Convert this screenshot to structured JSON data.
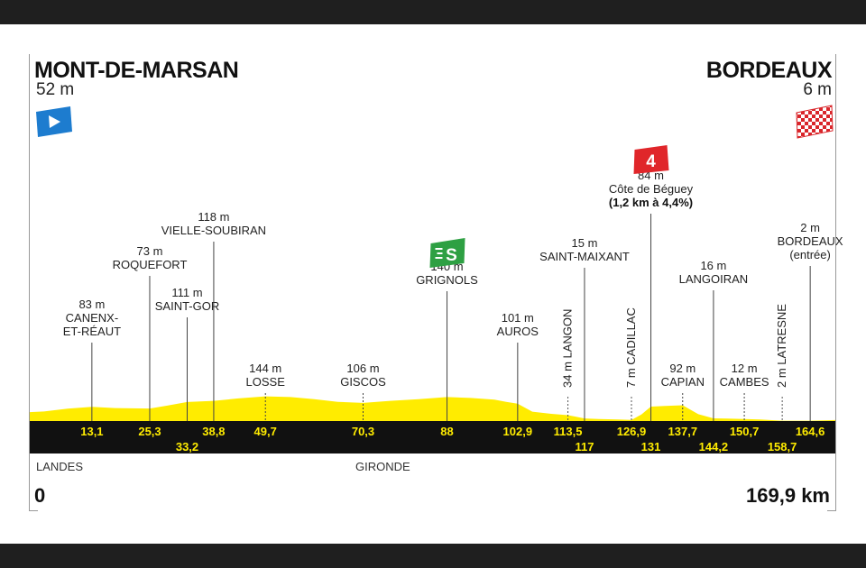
{
  "stage": {
    "start": {
      "name": "MONT-DE-MARSAN",
      "altitude": "52 m"
    },
    "finish": {
      "name": "BORDEAUX",
      "altitude": "6 m"
    },
    "start_km": "0",
    "total_km": "169,9 km",
    "departments": [
      "LANDES",
      "GIRONDE"
    ]
  },
  "chart_data": {
    "type": "area",
    "x_unit": "km",
    "xlim": [
      0,
      169.9
    ],
    "profile": [
      [
        0,
        52
      ],
      [
        3,
        56
      ],
      [
        8,
        72
      ],
      [
        13.1,
        83
      ],
      [
        18,
        76
      ],
      [
        25.3,
        73
      ],
      [
        29,
        90
      ],
      [
        33.2,
        111
      ],
      [
        38.8,
        118
      ],
      [
        44,
        132
      ],
      [
        49.7,
        144
      ],
      [
        55,
        140
      ],
      [
        60,
        128
      ],
      [
        65,
        112
      ],
      [
        70.3,
        106
      ],
      [
        76,
        118
      ],
      [
        82,
        128
      ],
      [
        88,
        140
      ],
      [
        93,
        135
      ],
      [
        98,
        125
      ],
      [
        100.5,
        112
      ],
      [
        102.9,
        101
      ],
      [
        106,
        55
      ],
      [
        110,
        42
      ],
      [
        113.5,
        34
      ],
      [
        117,
        15
      ],
      [
        120,
        12
      ],
      [
        124,
        9
      ],
      [
        126.9,
        7
      ],
      [
        129,
        38
      ],
      [
        131,
        84
      ],
      [
        134,
        88
      ],
      [
        137.7,
        92
      ],
      [
        141,
        40
      ],
      [
        144.2,
        16
      ],
      [
        147,
        14
      ],
      [
        150.7,
        12
      ],
      [
        154,
        9
      ],
      [
        158.7,
        2
      ],
      [
        164.6,
        2
      ],
      [
        169.9,
        6
      ]
    ],
    "km_markers_top": [
      {
        "km": 13.1,
        "label": "13,1"
      },
      {
        "km": 25.3,
        "label": "25,3"
      },
      {
        "km": 38.8,
        "label": "38,8"
      },
      {
        "km": 49.7,
        "label": "49,7"
      },
      {
        "km": 70.3,
        "label": "70,3"
      },
      {
        "km": 88,
        "label": "88"
      },
      {
        "km": 102.9,
        "label": "102,9"
      },
      {
        "km": 113.5,
        "label": "113,5"
      },
      {
        "km": 126.9,
        "label": "126,9"
      },
      {
        "km": 137.7,
        "label": "137,7"
      },
      {
        "km": 150.7,
        "label": "150,7"
      },
      {
        "km": 164.6,
        "label": "164,6"
      }
    ],
    "km_markers_bottom": [
      {
        "km": 33.2,
        "label": "33,2"
      },
      {
        "km": 117,
        "label": "117"
      },
      {
        "km": 131,
        "label": "131"
      },
      {
        "km": 144.2,
        "label": "144,2"
      },
      {
        "km": 158.7,
        "label": "158,7"
      }
    ],
    "waypoints": [
      {
        "km": 13.1,
        "alt": "83 m",
        "name": [
          "CANENX-",
          "ET-RÉAUT"
        ],
        "line": "tall"
      },
      {
        "km": 25.3,
        "alt": "73 m",
        "name": [
          "ROQUEFORT"
        ],
        "line": "tall"
      },
      {
        "km": 33.2,
        "alt": "111 m",
        "name": [
          "SAINT-GOR"
        ],
        "line": "tall"
      },
      {
        "km": 38.8,
        "alt": "118 m",
        "name": [
          "VIELLE-SOUBIRAN"
        ],
        "line": "tall"
      },
      {
        "km": 49.7,
        "alt": "144 m",
        "name": [
          "LOSSE"
        ],
        "line": "short"
      },
      {
        "km": 70.3,
        "alt": "106 m",
        "name": [
          "GISCOS"
        ],
        "line": "short"
      },
      {
        "km": 88,
        "alt": "140 m",
        "name": [
          "GRIGNOLS"
        ],
        "line": "tall",
        "sprint": "S"
      },
      {
        "km": 102.9,
        "alt": "101 m",
        "name": [
          "AUROS"
        ],
        "line": "tall"
      },
      {
        "km": 113.5,
        "vertical": "34 m LANGON"
      },
      {
        "km": 117,
        "alt": "15 m",
        "name": [
          "SAINT-MAIXANT"
        ],
        "line": "tall"
      },
      {
        "km": 126.9,
        "vertical": "7 m CADILLAC"
      },
      {
        "km": 131,
        "alt": "84 m",
        "name": [
          "Côte de Béguey"
        ],
        "detail": "(1,2 km à 4,4%)",
        "line": "tall",
        "climb_category": "4"
      },
      {
        "km": 137.7,
        "alt": "92 m",
        "name": [
          "CAPIAN"
        ],
        "line": "short"
      },
      {
        "km": 144.2,
        "alt": "16 m",
        "name": [
          "LANGOIRAN"
        ],
        "line": "tall"
      },
      {
        "km": 150.7,
        "alt": "12 m",
        "name": [
          "CAMBES"
        ],
        "line": "short"
      },
      {
        "km": 158.7,
        "vertical": "2 m LATRESNE"
      },
      {
        "km": 164.6,
        "alt": "2 m",
        "name": [
          "BORDEAUX",
          "(entrée)"
        ],
        "line": "tall"
      }
    ]
  },
  "colors": {
    "profile_fill": "#ffec00",
    "road_band": "#111111",
    "km_text": "#ffec00",
    "start_flag": "#1d7ccf",
    "sprint_badge": "#2ea043",
    "climb_badge": "#e0262a",
    "finish_flag": "#d9262b"
  },
  "icons": {
    "start": "start-flag-icon",
    "finish": "checkered-finish-flag-icon",
    "sprint": "sprint-badge-icon",
    "climb": "climb-category-badge-icon"
  }
}
